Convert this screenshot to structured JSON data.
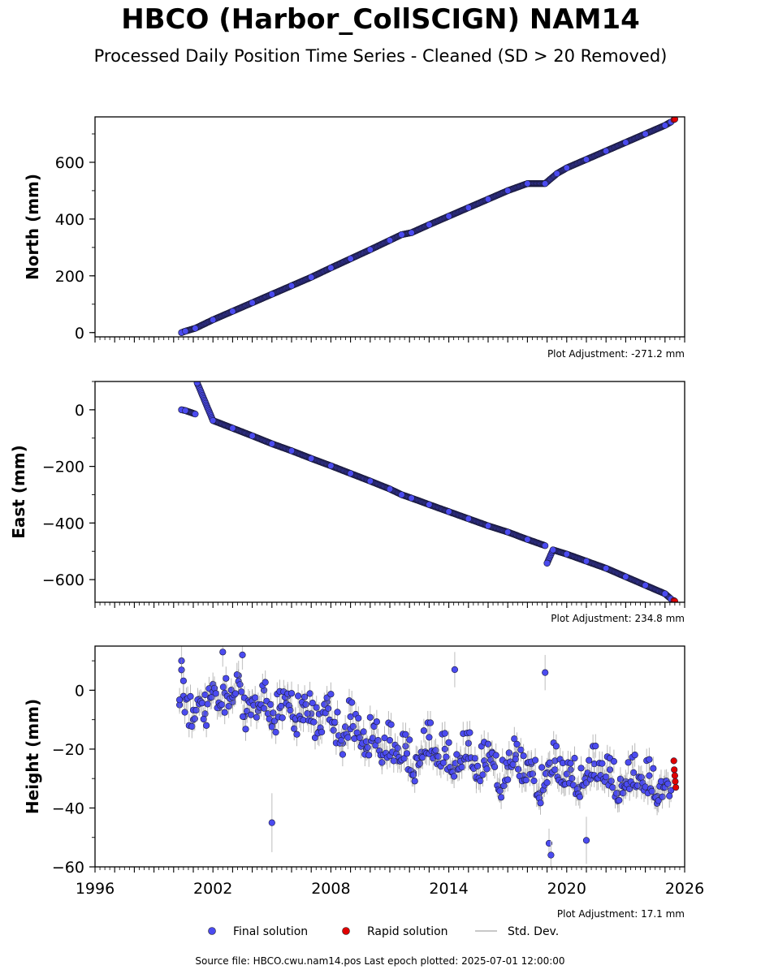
{
  "header": {
    "title": "HBCO (Harbor_CollSCIGN) NAM14",
    "subtitle": "Processed Daily Position Time Series - Cleaned (SD > 20 Removed)"
  },
  "legend": {
    "final": "Final solution",
    "rapid": "Rapid solution",
    "std": "Std. Dev."
  },
  "footer": {
    "source": "Source file: HBCO.cwu.nam14.pos  Last epoch plotted: 2025-07-01 12:00:00"
  },
  "colors": {
    "final": "#4b4bf0",
    "rapid": "#e00000",
    "std": "#c8c8c8"
  },
  "chart_data": [
    {
      "type": "scatter",
      "ylabel": "North (mm)",
      "adjustment": "Plot Adjustment: -271.2 mm",
      "xlim": [
        1996,
        2026
      ],
      "ylim": [
        -15,
        760
      ],
      "yticks": [
        0,
        200,
        400,
        600
      ],
      "ytick_labels": [
        "0",
        "200",
        "400",
        "600"
      ],
      "series": [
        {
          "name": "Final solution",
          "x": [
            2000.4,
            2000.6,
            2001.1,
            2002.0,
            2003.0,
            2004.0,
            2005.0,
            2006.0,
            2007.0,
            2008.0,
            2009.0,
            2010.0,
            2011.0,
            2011.6,
            2012.1,
            2013.0,
            2014.0,
            2015.0,
            2016.0,
            2017.0,
            2018.0,
            2018.9,
            2019.5,
            2020.0,
            2021.0,
            2022.0,
            2023.0,
            2024.0,
            2025.0,
            2025.3
          ],
          "y": [
            0,
            5,
            15,
            45,
            75,
            105,
            135,
            165,
            195,
            228,
            260,
            292,
            325,
            345,
            352,
            380,
            410,
            440,
            470,
            500,
            525,
            525,
            560,
            580,
            610,
            640,
            670,
            700,
            730,
            742
          ]
        },
        {
          "name": "Rapid solution",
          "x": [
            2025.45,
            2025.5
          ],
          "y": [
            750,
            752
          ]
        }
      ]
    },
    {
      "type": "scatter",
      "ylabel": "East (mm)",
      "adjustment": "Plot Adjustment: 234.8 mm",
      "xlim": [
        1996,
        2026
      ],
      "ylim": [
        -680,
        100
      ],
      "yticks": [
        0,
        -200,
        -400,
        -600
      ],
      "ytick_labels": [
        "0",
        "−200",
        "−400",
        "−600"
      ],
      "series": [
        {
          "name": "Final solution",
          "x": [
            2000.4,
            2000.6,
            2001.1,
            2001.2,
            2002.0,
            2003.0,
            2004.0,
            2005.0,
            2006.0,
            2007.0,
            2008.0,
            2009.0,
            2010.0,
            2011.0,
            2011.6,
            2012.1,
            2013.0,
            2014.0,
            2015.0,
            2016.0,
            2017.0,
            2018.0,
            2018.9,
            2019.0,
            2019.3,
            2020.0,
            2021.0,
            2022.0,
            2023.0,
            2024.0,
            2025.0,
            2025.3
          ],
          "y": [
            0,
            -3,
            -15,
            95,
            -38,
            -65,
            -92,
            -120,
            -145,
            -172,
            -198,
            -225,
            -252,
            -280,
            -300,
            -312,
            -335,
            -360,
            -385,
            -410,
            -432,
            -458,
            -480,
            -542,
            -495,
            -510,
            -535,
            -560,
            -590,
            -620,
            -650,
            -668
          ]
        },
        {
          "name": "Rapid solution",
          "x": [
            2025.45,
            2025.5
          ],
          "y": [
            -674,
            -676
          ]
        }
      ]
    },
    {
      "type": "scatter",
      "ylabel": "Height (mm)",
      "adjustment": "Plot Adjustment: 17.1 mm",
      "xlim": [
        1996,
        2026
      ],
      "ylim": [
        -60,
        15
      ],
      "yticks": [
        0,
        -20,
        -40,
        -60
      ],
      "ytick_labels": [
        "0",
        "−20",
        "−40",
        "−60"
      ],
      "xticks": [
        1996,
        2002,
        2008,
        2014,
        2020,
        2026
      ],
      "xtick_labels": [
        "1996",
        "2002",
        "2008",
        "2014",
        "2020",
        "2026"
      ],
      "series": [
        {
          "name": "Final solution",
          "x": [
            2000.3,
            2000.4,
            2000.5,
            2001.0,
            2001.3,
            2001.6,
            2002.0,
            2002.3,
            2002.6,
            2003.0,
            2003.3,
            2003.6,
            2004.0,
            2004.3,
            2004.6,
            2005.0,
            2005.4,
            2005.8,
            2006.2,
            2006.6,
            2007.0,
            2007.4,
            2007.8,
            2008.2,
            2008.6,
            2009.0,
            2009.4,
            2009.8,
            2010.2,
            2010.6,
            2011.0,
            2011.4,
            2011.8,
            2012.2,
            2012.6,
            2013.0,
            2013.4,
            2013.8,
            2014.2,
            2014.6,
            2015.0,
            2015.4,
            2015.8,
            2016.2,
            2016.6,
            2017.0,
            2017.4,
            2017.8,
            2018.2,
            2018.6,
            2019.0,
            2019.4,
            2019.8,
            2020.2,
            2020.6,
            2021.0,
            2021.4,
            2021.8,
            2022.2,
            2022.6,
            2023.0,
            2023.4,
            2023.8,
            2024.2,
            2024.6,
            2025.0,
            2025.3,
            2005.0,
            2014.3,
            2018.9,
            2019.1,
            2019.2,
            2021.0,
            2003.5,
            2002.5
          ],
          "y": [
            -5,
            10,
            -2,
            -10,
            -3,
            -8,
            2,
            -6,
            -1,
            -4,
            5,
            -9,
            -3,
            -7,
            0,
            -12,
            -6,
            -2,
            -10,
            -5,
            -8,
            -14,
            -4,
            -11,
            -18,
            -9,
            -15,
            -20,
            -12,
            -22,
            -17,
            -24,
            -19,
            -28,
            -21,
            -16,
            -25,
            -20,
            -27,
            -23,
            -18,
            -30,
            -24,
            -21,
            -33,
            -26,
            -22,
            -29,
            -25,
            -35,
            -28,
            -24,
            -31,
            -27,
            -33,
            -29,
            -25,
            -30,
            -27,
            -35,
            -31,
            -28,
            -33,
            -29,
            -36,
            -31,
            -34,
            -45,
            7,
            6,
            -52,
            -56,
            -51,
            12,
            13
          ],
          "err": [
            3,
            5,
            4,
            4,
            3,
            4,
            4,
            3,
            4,
            4,
            5,
            4,
            3,
            4,
            4,
            4,
            3,
            4,
            4,
            3,
            4,
            5,
            4,
            4,
            5,
            4,
            4,
            4,
            4,
            5,
            4,
            4,
            5,
            4,
            4,
            4,
            4,
            5,
            4,
            4,
            4,
            5,
            4,
            4,
            5,
            4,
            4,
            4,
            4,
            5,
            5,
            4,
            4,
            4,
            4,
            4,
            4,
            4,
            4,
            5,
            4,
            4,
            4,
            4,
            5,
            4,
            4,
            10,
            6,
            6,
            5,
            5,
            8,
            5,
            5
          ]
        },
        {
          "name": "Rapid solution",
          "x": [
            2025.45,
            2025.47,
            2025.5,
            2025.52,
            2025.55
          ],
          "y": [
            -24,
            -27,
            -29,
            -31,
            -33
          ]
        }
      ]
    }
  ]
}
